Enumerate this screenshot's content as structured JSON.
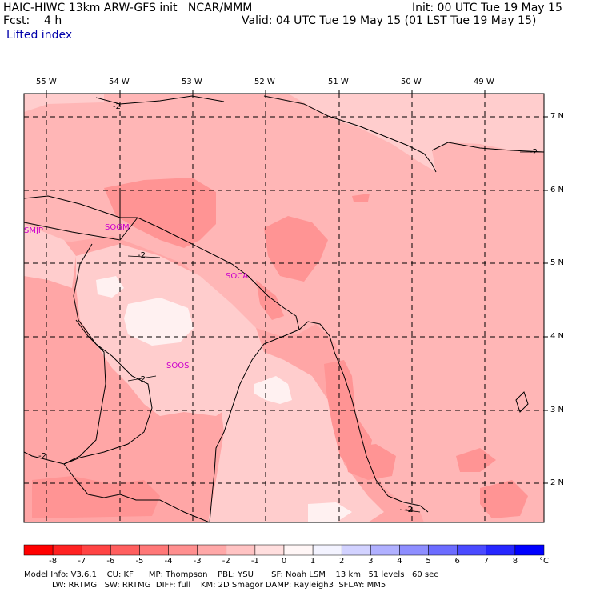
{
  "header": {
    "title_left": "HAIC-HIWC 13km ARW-GFS init   NCAR/MMM",
    "fcst": "Fcst:    4 h",
    "field": "Lifted index",
    "init": "Init: 00 UTC Tue 19 May 15",
    "valid": "Valid: 04 UTC Tue 19 May 15 (01 LST Tue 19 May 15)"
  },
  "map": {
    "longitudes": [
      "55 W",
      "54 W",
      "53 W",
      "52 W",
      "51 W",
      "50 W",
      "49 W"
    ],
    "latitudes": [
      "7 N",
      "6 N",
      "5 N",
      "4 N",
      "3 N",
      "2 N"
    ],
    "contour_label": "-2",
    "stations": [
      "SMJP",
      "SOGM",
      "SOCA",
      "SOOS"
    ]
  },
  "colors": {
    "m6": "#ff7070",
    "m5": "#ff8c8c",
    "m4": "#ffa2a2",
    "m3": "#ffb6b6",
    "m2": "#ffcdcd",
    "m1": "#ffe4e4",
    "zero": "#fff4f4",
    "coast": "#000000",
    "station": "#cc00cc"
  },
  "colorbar": {
    "labels": [
      "-8",
      "-7",
      "-6",
      "-5",
      "-4",
      "-3",
      "-2",
      "-1",
      "0",
      "1",
      "2",
      "3",
      "4",
      "5",
      "6",
      "7",
      "8"
    ],
    "unit": "°C",
    "swatches": [
      "#ff0000",
      "#ff2222",
      "#ff4444",
      "#ff5f5f",
      "#ff7878",
      "#ff8f8f",
      "#ffa8a8",
      "#ffc3c3",
      "#ffdede",
      "#fff6f6",
      "#f3f3ff",
      "#d2d2ff",
      "#b0b0ff",
      "#8e8eff",
      "#6c6cff",
      "#4a4aff",
      "#2626ff",
      "#0000ff"
    ]
  },
  "footer": {
    "line1": "Model Info: V3.6.1    CU: KF      MP: Thompson    PBL: YSU       SF: Noah LSM    13 km   51 levels   60 sec",
    "line2": "           LW: RRTMG   SW: RRTMG  DIFF: full    KM: 2D Smagor DAMP: Rayleigh3  SFLAY: MM5"
  }
}
